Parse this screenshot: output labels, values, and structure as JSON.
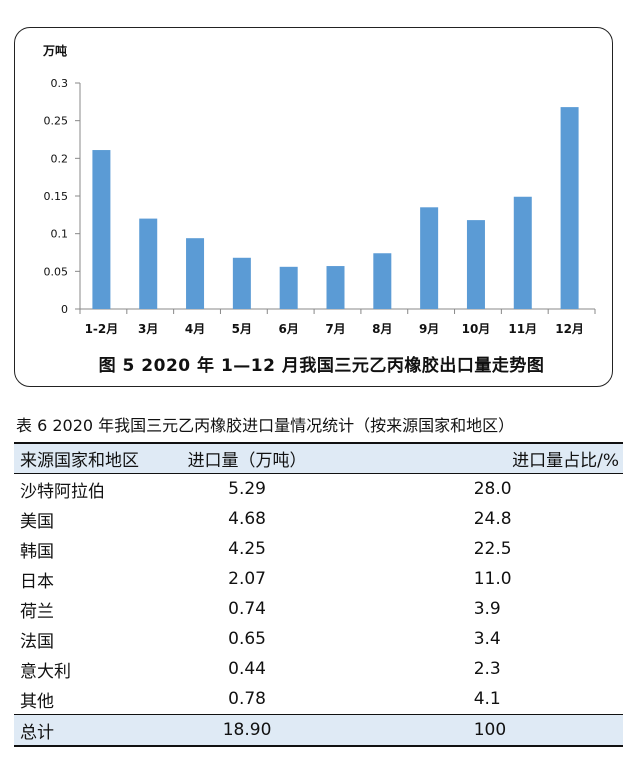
{
  "figure": {
    "caption": "图 5  2020 年 1—12 月我国三元乙丙橡胶出口量走势图"
  },
  "chart_data": {
    "type": "bar",
    "ylabel": "万吨",
    "ylim": [
      0,
      0.3
    ],
    "yticks": [
      "0",
      "0.05",
      "0.1",
      "0.15",
      "0.2",
      "0.25",
      "0.3"
    ],
    "categories": [
      "1-2月",
      "3月",
      "4月",
      "5月",
      "6月",
      "7月",
      "8月",
      "9月",
      "10月",
      "11月",
      "12月"
    ],
    "values": [
      0.211,
      0.12,
      0.094,
      0.068,
      0.056,
      0.057,
      0.074,
      0.135,
      0.118,
      0.149,
      0.268
    ],
    "bar_color": "#5b9bd5",
    "grid": false
  },
  "table": {
    "caption": "表 6  2020 年我国三元乙丙橡胶进口量情况统计（按来源国家和地区）",
    "headers": [
      "来源国家和地区",
      "进口量（万吨）",
      "进口量占比/%"
    ],
    "rows": [
      [
        "沙特阿拉伯",
        "5.29",
        "28.0"
      ],
      [
        "美国",
        "4.68",
        "24.8"
      ],
      [
        "韩国",
        "4.25",
        "22.5"
      ],
      [
        "日本",
        "2.07",
        "11.0"
      ],
      [
        "荷兰",
        "0.74",
        "3.9"
      ],
      [
        "法国",
        "0.65",
        "3.4"
      ],
      [
        "意大利",
        "0.44",
        "2.3"
      ],
      [
        "其他",
        "0.78",
        "4.1"
      ]
    ],
    "total": [
      "总计",
      "18.90",
      "100"
    ],
    "highlight_color": "#dfeaf5"
  }
}
